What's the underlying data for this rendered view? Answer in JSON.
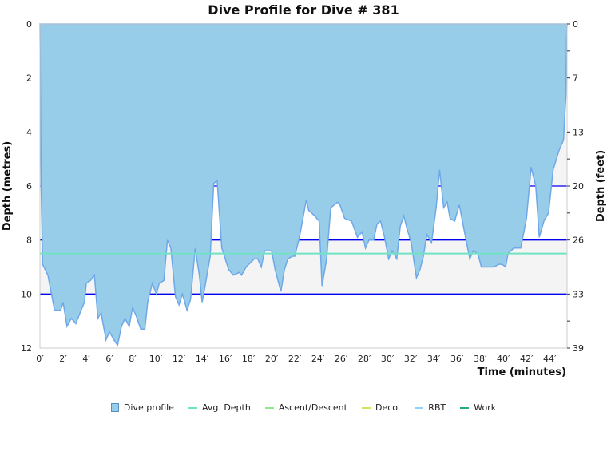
{
  "chart_data": {
    "type": "area",
    "title": "Dive Profile for Dive # 381",
    "xlabel": "Time (minutes)",
    "ylabel": "Depth (metres)",
    "ylabel_right": "Depth (feet)",
    "xlim": [
      0,
      45.5
    ],
    "ylim": [
      0,
      12
    ],
    "y_inverted": true,
    "x_ticks": [
      "0′",
      "2′",
      "4′",
      "6′",
      "8′",
      "10′",
      "12′",
      "14′",
      "16′",
      "18′",
      "20′",
      "22′",
      "24′",
      "26′",
      "28′",
      "30′",
      "32′",
      "34′",
      "36′",
      "38′",
      "40′",
      "42′",
      "44′"
    ],
    "x_tick_values": [
      0,
      2,
      4,
      6,
      8,
      10,
      12,
      14,
      16,
      18,
      20,
      22,
      24,
      26,
      28,
      30,
      32,
      34,
      36,
      38,
      40,
      42,
      44
    ],
    "y_ticks": [
      "0",
      "2",
      "4",
      "6",
      "8",
      "10",
      "12"
    ],
    "y_tick_values": [
      0,
      2,
      4,
      6,
      8,
      10,
      12
    ],
    "y_right_ticks": [
      "0",
      "7",
      "13",
      "20",
      "26",
      "33",
      "39"
    ],
    "avg_depth": 8.5,
    "reference_lines": [
      6,
      8,
      10
    ],
    "shaded_bands": [
      [
        4,
        6
      ],
      [
        8,
        10
      ]
    ],
    "series": [
      {
        "name": "Dive profile",
        "color": "#97cde9",
        "line_color": "#6fa8e8",
        "x": [
          0,
          0.1,
          0.23,
          0.69,
          1.26,
          1.8,
          2.0,
          2.34,
          2.7,
          3.1,
          3.55,
          3.85,
          4.0,
          4.36,
          4.7,
          5.0,
          5.28,
          5.7,
          6.0,
          6.4,
          6.7,
          7.04,
          7.34,
          7.7,
          8.0,
          8.3,
          8.7,
          9.06,
          9.3,
          9.7,
          10.05,
          10.3,
          10.7,
          11.0,
          11.3,
          11.7,
          12.0,
          12.3,
          12.7,
          13.0,
          13.4,
          13.76,
          14.0,
          14.3,
          14.7,
          15.0,
          15.3,
          15.7,
          16.3,
          16.7,
          17.2,
          17.4,
          17.8,
          18.5,
          18.8,
          19.1,
          19.4,
          20.0,
          20.3,
          20.8,
          21.1,
          21.4,
          21.8,
          22.0,
          22.4,
          22.7,
          23.0,
          23.2,
          23.7,
          24.1,
          24.35,
          24.75,
          25.1,
          25.7,
          25.9,
          26.3,
          26.9,
          27.4,
          27.8,
          28.1,
          28.4,
          28.8,
          29.1,
          29.4,
          29.75,
          30.1,
          30.4,
          30.8,
          31.1,
          31.4,
          31.7,
          32.05,
          32.5,
          32.8,
          33.1,
          33.4,
          33.8,
          34.2,
          34.5,
          34.85,
          35.15,
          35.4,
          35.8,
          36.2,
          36.6,
          37.1,
          37.4,
          37.8,
          38.1,
          39.2,
          39.6,
          39.9,
          40.2,
          40.4,
          40.9,
          41.5,
          42.0,
          42.4,
          42.8,
          43.1,
          43.5,
          43.9,
          44.3,
          44.8,
          45.2,
          45.25,
          45.4,
          45.45,
          45.5
        ],
        "y": [
          0,
          6.0,
          8.9,
          9.3,
          10.6,
          10.6,
          10.3,
          11.2,
          10.9,
          11.1,
          10.6,
          10.3,
          9.6,
          9.5,
          9.3,
          10.9,
          10.7,
          11.7,
          11.4,
          11.7,
          11.9,
          11.2,
          10.9,
          11.2,
          10.5,
          10.8,
          11.3,
          11.3,
          10.3,
          9.6,
          10.0,
          9.6,
          9.5,
          8.0,
          8.3,
          10.1,
          10.4,
          10.0,
          10.6,
          10.2,
          8.3,
          9.3,
          10.3,
          9.6,
          8.6,
          5.9,
          5.8,
          8.3,
          9.1,
          9.3,
          9.2,
          9.3,
          9.0,
          8.7,
          8.7,
          9.0,
          8.4,
          8.4,
          9.1,
          9.9,
          9.1,
          8.7,
          8.6,
          8.6,
          7.9,
          7.2,
          6.5,
          6.9,
          7.1,
          7.3,
          9.7,
          8.7,
          6.8,
          6.6,
          6.7,
          7.2,
          7.3,
          7.9,
          7.7,
          8.3,
          8.0,
          8.0,
          7.4,
          7.3,
          7.9,
          8.7,
          8.4,
          8.7,
          7.5,
          7.1,
          7.6,
          8.1,
          9.4,
          9.1,
          8.6,
          7.8,
          8.1,
          6.8,
          5.4,
          6.8,
          6.6,
          7.2,
          7.3,
          6.7,
          7.6,
          8.7,
          8.4,
          8.5,
          9.0,
          9.0,
          8.9,
          8.9,
          9.0,
          8.5,
          8.3,
          8.3,
          7.2,
          5.3,
          6.0,
          7.9,
          7.3,
          7.0,
          5.4,
          4.7,
          4.3,
          3.8,
          2.7,
          0.6,
          0
        ]
      }
    ],
    "legend_position": "bottom",
    "legend": [
      {
        "label": "Dive profile",
        "color": "#97cde9",
        "kind": "box"
      },
      {
        "label": "Avg. Depth",
        "color": "#6fe3c4",
        "kind": "line"
      },
      {
        "label": "Ascent/Descent",
        "color": "#8ee88e",
        "kind": "line"
      },
      {
        "label": "Deco.",
        "color": "#d6e35a",
        "kind": "line"
      },
      {
        "label": "RBT",
        "color": "#8fd3f6",
        "kind": "line"
      },
      {
        "label": "Work",
        "color": "#1fae8a",
        "kind": "line"
      }
    ]
  }
}
